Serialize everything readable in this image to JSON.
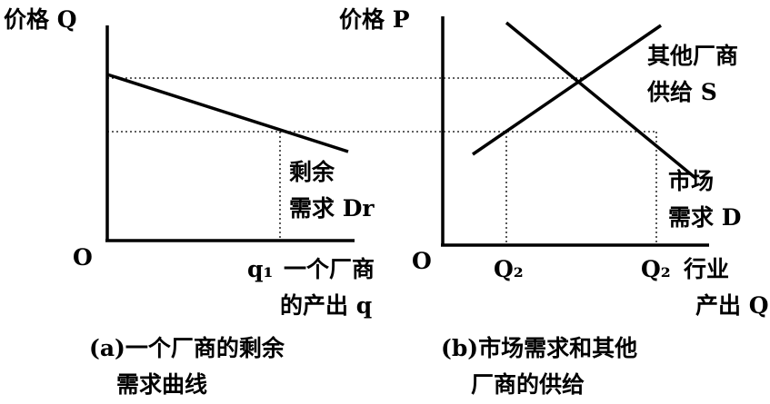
{
  "panel_a": {
    "y_axis_label": "价格 Q",
    "origin": "O",
    "curve_label_line1": "剩余",
    "curve_label_line2": "需求 Dr",
    "x_tick": "q₁",
    "x_axis_label_line1": "一个厂商",
    "x_axis_label_line2": "的产出 q",
    "caption_line1": "(a)一个厂商的剩余",
    "caption_line2": "需求曲线"
  },
  "panel_b": {
    "y_axis_label": "价格 P",
    "origin": "O",
    "supply_label_line1": "其他厂商",
    "supply_label_line2": "供给 S",
    "demand_label_line1": "市场",
    "demand_label_line2": "需求 D",
    "x_tick_1": "Q₂",
    "x_tick_2": "Q₂",
    "x_axis_label_line1": "行业",
    "x_axis_label_line2": "产出 Q",
    "caption_line1": "(b)市场需求和其他",
    "caption_line2": "厂商的供给"
  }
}
